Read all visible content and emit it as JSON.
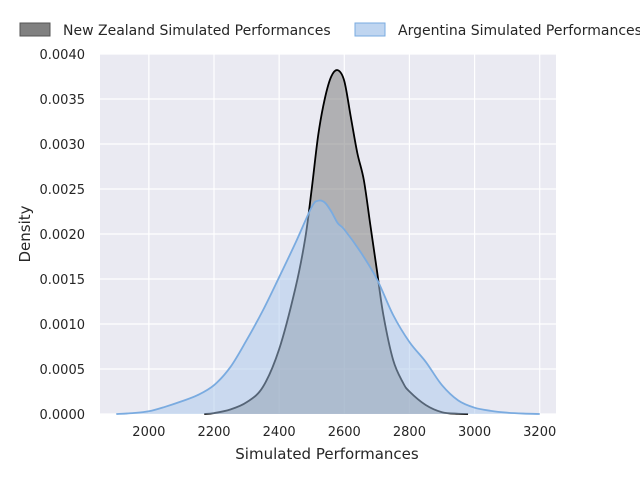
{
  "chart_data": {
    "type": "area",
    "title": "",
    "xlabel": "Simulated Performances",
    "ylabel": "Density",
    "xlim": [
      1850,
      3250
    ],
    "ylim": [
      0,
      0.004
    ],
    "xticks": [
      2000,
      2200,
      2400,
      2600,
      2800,
      3000,
      3200
    ],
    "yticks": [
      0,
      0.0005,
      0.001,
      0.0015,
      0.002,
      0.0025,
      0.003,
      0.0035,
      0.004
    ],
    "ytick_labels": [
      "0.0000",
      "0.0005",
      "0.0010",
      "0.0015",
      "0.0020",
      "0.0025",
      "0.0030",
      "0.0035",
      "0.0040"
    ],
    "grid": true,
    "legend_position": "top",
    "series": [
      {
        "name": "New Zealand Simulated Performances",
        "fill": "#808080",
        "line": "#000000",
        "x": [
          2170,
          2200,
          2250,
          2300,
          2350,
          2400,
          2450,
          2480,
          2500,
          2520,
          2540,
          2560,
          2580,
          2600,
          2620,
          2640,
          2660,
          2680,
          2700,
          2720,
          2750,
          2780,
          2800,
          2850,
          2900,
          2950,
          2980
        ],
        "y": [
          0.0,
          1e-05,
          5e-05,
          0.00013,
          0.0003,
          0.00072,
          0.0014,
          0.00195,
          0.0025,
          0.0031,
          0.0035,
          0.00375,
          0.00382,
          0.0037,
          0.0033,
          0.0029,
          0.0026,
          0.0021,
          0.0016,
          0.0011,
          0.0006,
          0.00035,
          0.00025,
          0.0001,
          2e-05,
          3e-06,
          0.0
        ]
      },
      {
        "name": "Argentina Simulated Performances",
        "fill": "#a9c7eb",
        "line": "#7aabe0",
        "x": [
          1900,
          1950,
          2000,
          2050,
          2100,
          2150,
          2200,
          2250,
          2300,
          2350,
          2400,
          2450,
          2500,
          2520,
          2540,
          2560,
          2580,
          2600,
          2650,
          2700,
          2750,
          2800,
          2850,
          2900,
          2950,
          3000,
          3050,
          3100,
          3150,
          3200
        ],
        "y": [
          0.0,
          1e-05,
          3e-05,
          8e-05,
          0.00014,
          0.00021,
          0.00032,
          0.00052,
          0.00082,
          0.00115,
          0.00152,
          0.0019,
          0.0023,
          0.00237,
          0.00235,
          0.00225,
          0.00212,
          0.00205,
          0.0018,
          0.0015,
          0.0011,
          0.0008,
          0.00058,
          0.00032,
          0.00015,
          7e-05,
          3.5e-05,
          1.5e-05,
          5e-06,
          0.0
        ]
      }
    ]
  }
}
